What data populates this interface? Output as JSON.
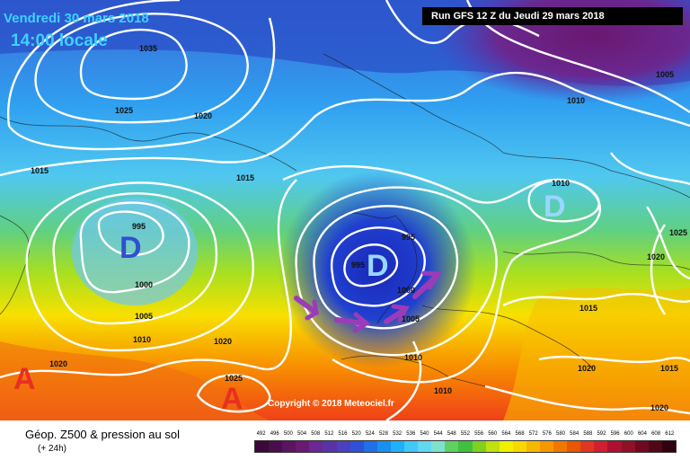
{
  "header": {
    "date": "Vendredi 30 mars 2018",
    "time": "14:00 locale",
    "run": "Run GFS 12 Z du Jeudi 29 mars 2018"
  },
  "copyright": "Copyright © 2018 Meteociel.fr",
  "footer": {
    "title": "Géop. Z500 & pression au sol",
    "subtitle": "(+ 24h)"
  },
  "pressure_labels": [
    "1035",
    "1025",
    "1020",
    "1015",
    "1015",
    "995",
    "1000",
    "1005",
    "1010",
    "1020",
    "1025",
    "1020",
    "995",
    "995",
    "1000",
    "1005",
    "1010",
    "1010",
    "1010",
    "1010",
    "1005",
    "1020",
    "1015",
    "1015",
    "1020",
    "1020",
    "1025"
  ],
  "centers": [
    {
      "label": "D",
      "color": "#3050d0"
    },
    {
      "label": "D",
      "color": "#9ad6ff"
    },
    {
      "label": "D",
      "color": "#9ad6ff"
    },
    {
      "label": "A",
      "color": "#e83020"
    },
    {
      "label": "A",
      "color": "#e83020"
    }
  ],
  "scale": {
    "labels": [
      "492",
      "496",
      "500",
      "504",
      "508",
      "512",
      "516",
      "520",
      "524",
      "528",
      "532",
      "536",
      "540",
      "544",
      "548",
      "552",
      "556",
      "560",
      "564",
      "568",
      "572",
      "576",
      "580",
      "584",
      "588",
      "592",
      "596",
      "600",
      "604",
      "608",
      "612"
    ],
    "colors": [
      "#3a0a3a",
      "#4a0e4c",
      "#5a1460",
      "#6a1a72",
      "#6a2890",
      "#5a32a8",
      "#4a40c0",
      "#3050d8",
      "#2070e8",
      "#1890f0",
      "#20b0f8",
      "#40c8f8",
      "#60d8f0",
      "#80e0d0",
      "#60d060",
      "#40c040",
      "#80d020",
      "#c0e010",
      "#f0f000",
      "#f8d800",
      "#f8b800",
      "#f89800",
      "#f07800",
      "#e85800",
      "#e03820",
      "#d02030",
      "#b01030",
      "#901028",
      "#700820",
      "#500818",
      "#300010"
    ]
  }
}
